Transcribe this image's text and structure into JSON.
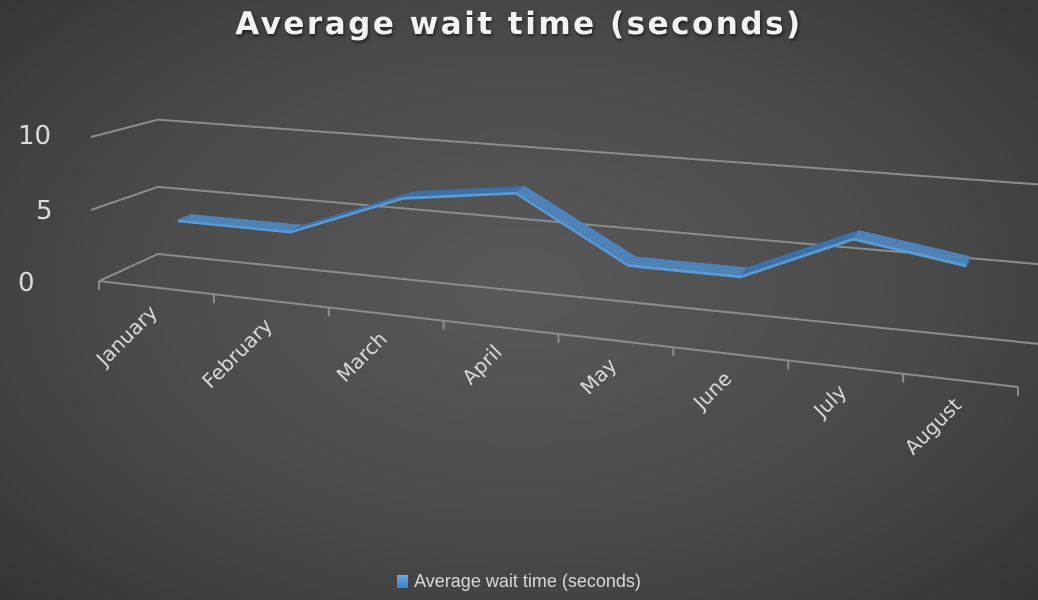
{
  "title": "Average wait time (seconds)",
  "legend": {
    "label": "Average wait time (seconds)",
    "swatch_color": "#5b9bd5",
    "icon": "square-swatch-icon"
  },
  "colors": {
    "ribbon_front": "#5b9bd5",
    "ribbon_top": "#4e86bf",
    "ribbon_side": "#3a72ad",
    "gridline": "#8c8c8c",
    "text": "#d9d9d9",
    "background_center": "#595959",
    "background_edge": "#343434"
  },
  "y_axis": {
    "ticks": [
      "0",
      "5",
      "10"
    ]
  },
  "x_axis": {
    "categories": [
      "January",
      "February",
      "March",
      "April",
      "May",
      "June",
      "July",
      "August"
    ]
  },
  "chart_data": {
    "type": "line",
    "style": "3d-line-ribbon",
    "title": "Average wait time (seconds)",
    "xlabel": "",
    "ylabel": "",
    "categories": [
      "January",
      "February",
      "March",
      "April",
      "May",
      "June",
      "July",
      "August"
    ],
    "series": [
      {
        "name": "Average wait time (seconds)",
        "values": [
          4,
          4,
          7,
          8,
          4,
          4,
          7,
          6
        ]
      }
    ],
    "ylim": [
      0,
      10
    ],
    "yticks": [
      0,
      5,
      10
    ],
    "grid": true,
    "legend_position": "bottom"
  }
}
